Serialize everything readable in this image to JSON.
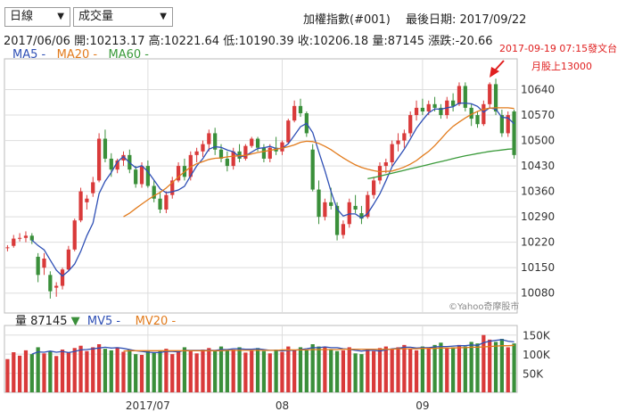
{
  "controls": {
    "period_select": "日線",
    "indicator_select": "成交量"
  },
  "header": {
    "index_name": "加權指數(#001)",
    "last_date_label": "最後日期: 2017/09/22"
  },
  "ohlc_bar": {
    "date": "2017/06/06",
    "open": "開:10213.17",
    "high": "高:10221.64",
    "low": "低:10190.39",
    "close": "收:10206.18",
    "volume": "量:87145",
    "change": "漲跌:-20.66"
  },
  "legend": {
    "ma5": "MA5 -",
    "ma20": "MA20 -",
    "ma60": "MA60 -",
    "vol": "量 87145",
    "mv5": "MV5 -",
    "mv20": "MV20 -"
  },
  "annotation": {
    "line1": "2017-09-19 07:15發文台",
    "line2": "月股上13000"
  },
  "watermark": "©Yahoo奇摩股市",
  "colors": {
    "up": "#d93a3a",
    "down": "#3a8f3a",
    "ma5": "#2e4fb5",
    "ma20": "#e27b1c",
    "ma60": "#3a9a3a",
    "grid": "#dddddd"
  },
  "chart_data": {
    "type": "candlestick",
    "price_axis": {
      "ticks": [
        "10640",
        "10570",
        "10500",
        "10430",
        "10360",
        "10290",
        "10220",
        "10150",
        "10080"
      ],
      "range": [
        10040,
        10710
      ]
    },
    "volume_axis": {
      "ticks": [
        "150K",
        "100K",
        "50K"
      ],
      "range": [
        0,
        175
      ]
    },
    "x_ticks": [
      {
        "label": "2017/07",
        "index": 23
      },
      {
        "label": "08",
        "index": 45
      },
      {
        "label": "09",
        "index": 68
      }
    ],
    "series": [
      {
        "name": "candles",
        "values": [
          [
            10205,
            10212,
            10195,
            10206
          ],
          [
            10210,
            10240,
            10205,
            10230
          ],
          [
            10230,
            10245,
            10222,
            10232
          ],
          [
            10232,
            10250,
            10220,
            10238
          ],
          [
            10238,
            10245,
            10215,
            10225
          ],
          [
            10180,
            10190,
            10110,
            10130
          ],
          [
            10150,
            10190,
            10130,
            10175
          ],
          [
            10130,
            10140,
            10065,
            10085
          ],
          [
            10095,
            10110,
            10070,
            10100
          ],
          [
            10100,
            10150,
            10090,
            10145
          ],
          [
            10145,
            10210,
            10140,
            10200
          ],
          [
            10200,
            10285,
            10195,
            10280
          ],
          [
            10280,
            10370,
            10275,
            10360
          ],
          [
            10330,
            10350,
            10310,
            10340
          ],
          [
            10355,
            10400,
            10345,
            10385
          ],
          [
            10390,
            10520,
            10385,
            10505
          ],
          [
            10505,
            10530,
            10440,
            10450
          ],
          [
            10450,
            10465,
            10400,
            10420
          ],
          [
            10420,
            10450,
            10410,
            10445
          ],
          [
            10445,
            10470,
            10430,
            10460
          ],
          [
            10460,
            10475,
            10410,
            10420
          ],
          [
            10420,
            10430,
            10370,
            10380
          ],
          [
            10380,
            10440,
            10370,
            10430
          ],
          [
            10430,
            10445,
            10370,
            10375
          ],
          [
            10375,
            10390,
            10330,
            10340
          ],
          [
            10340,
            10360,
            10300,
            10310
          ],
          [
            10310,
            10360,
            10300,
            10350
          ],
          [
            10350,
            10400,
            10340,
            10390
          ],
          [
            10390,
            10440,
            10385,
            10430
          ],
          [
            10430,
            10450,
            10390,
            10400
          ],
          [
            10400,
            10470,
            10390,
            10460
          ],
          [
            10460,
            10480,
            10440,
            10470
          ],
          [
            10470,
            10500,
            10455,
            10490
          ],
          [
            10490,
            10530,
            10470,
            10520
          ],
          [
            10520,
            10535,
            10460,
            10475
          ],
          [
            10475,
            10490,
            10440,
            10450
          ],
          [
            10450,
            10470,
            10415,
            10430
          ],
          [
            10430,
            10480,
            10420,
            10470
          ],
          [
            10470,
            10490,
            10440,
            10450
          ],
          [
            10450,
            10490,
            10445,
            10485
          ],
          [
            10485,
            10510,
            10480,
            10505
          ],
          [
            10505,
            10510,
            10470,
            10480
          ],
          [
            10480,
            10490,
            10440,
            10450
          ],
          [
            10450,
            10490,
            10440,
            10480
          ],
          [
            10480,
            10510,
            10460,
            10470
          ],
          [
            10470,
            10500,
            10460,
            10495
          ],
          [
            10495,
            10560,
            10490,
            10555
          ],
          [
            10555,
            10610,
            10550,
            10595
          ],
          [
            10595,
            10615,
            10565,
            10575
          ],
          [
            10575,
            10580,
            10510,
            10520
          ],
          [
            10475,
            10490,
            10360,
            10365
          ],
          [
            10365,
            10390,
            10270,
            10290
          ],
          [
            10290,
            10340,
            10280,
            10330
          ],
          [
            10330,
            10370,
            10310,
            10320
          ],
          [
            10320,
            10330,
            10225,
            10240
          ],
          [
            10240,
            10280,
            10230,
            10270
          ],
          [
            10270,
            10340,
            10260,
            10330
          ],
          [
            10320,
            10350,
            10300,
            10310
          ],
          [
            10300,
            10320,
            10270,
            10285
          ],
          [
            10290,
            10360,
            10285,
            10350
          ],
          [
            10350,
            10400,
            10340,
            10390
          ],
          [
            10390,
            10440,
            10380,
            10430
          ],
          [
            10430,
            10450,
            10410,
            10440
          ],
          [
            10440,
            10500,
            10430,
            10490
          ],
          [
            10490,
            10520,
            10470,
            10500
          ],
          [
            10500,
            10530,
            10480,
            10520
          ],
          [
            10520,
            10580,
            10510,
            10570
          ],
          [
            10570,
            10610,
            10555,
            10590
          ],
          [
            10590,
            10615,
            10570,
            10580
          ],
          [
            10580,
            10610,
            10570,
            10600
          ],
          [
            10600,
            10620,
            10580,
            10590
          ],
          [
            10590,
            10600,
            10560,
            10570
          ],
          [
            10570,
            10620,
            10560,
            10610
          ],
          [
            10610,
            10630,
            10580,
            10595
          ],
          [
            10600,
            10660,
            10595,
            10650
          ],
          [
            10650,
            10660,
            10580,
            10590
          ],
          [
            10590,
            10600,
            10540,
            10560
          ],
          [
            10570,
            10580,
            10535,
            10545
          ],
          [
            10545,
            10610,
            10540,
            10600
          ],
          [
            10600,
            10660,
            10590,
            10655
          ],
          [
            10655,
            10670,
            10570,
            10580
          ],
          [
            10570,
            10585,
            10510,
            10520
          ],
          [
            10520,
            10580,
            10510,
            10570
          ],
          [
            10580,
            10585,
            10450,
            10460
          ]
        ]
      },
      {
        "name": "MA5",
        "values": [
          null,
          null,
          null,
          null,
          10226,
          10211,
          10199,
          10171,
          10143,
          10127,
          10141,
          10160,
          10195,
          10238,
          10273,
          10354,
          10388,
          10412,
          10441,
          10456,
          10439,
          10425,
          10431,
          10414,
          10391,
          10367,
          10356,
          10359,
          10364,
          10374,
          10403,
          10430,
          10450,
          10476,
          10483,
          10481,
          10474,
          10469,
          10455,
          10458,
          10468,
          10478,
          10480,
          10484,
          10478,
          10478,
          10491,
          10514,
          10538,
          10547,
          10522,
          10469,
          10417,
          10360,
          10311,
          10292,
          10298,
          10298,
          10287,
          10299,
          10325,
          10353,
          10389,
          10428,
          10452,
          10476,
          10504,
          10534,
          10556,
          10576,
          10587,
          10586,
          10590,
          10593,
          10603,
          10603,
          10601,
          10594,
          10578,
          10590,
          10586,
          10564,
          10562,
          10546
        ]
      },
      {
        "name": "MA20",
        "values": [
          null,
          null,
          null,
          null,
          null,
          null,
          null,
          null,
          null,
          null,
          null,
          null,
          null,
          null,
          null,
          null,
          null,
          null,
          null,
          10290,
          10300,
          10313,
          10325,
          10337,
          10348,
          10357,
          10369,
          10384,
          10400,
          10414,
          10427,
          10436,
          10442,
          10448,
          10451,
          10452,
          10455,
          10457,
          10458,
          10459,
          10463,
          10467,
          10470,
          10473,
          10476,
          10479,
          10483,
          10488,
          10495,
          10498,
          10497,
          10492,
          10484,
          10475,
          10463,
          10452,
          10442,
          10433,
          10426,
          10421,
          10417,
          10414,
          10415,
          10416,
          10421,
          10427,
          10435,
          10445,
          10458,
          10470,
          10486,
          10504,
          10523,
          10539,
          10551,
          10562,
          10572,
          10580,
          10586,
          10589,
          10590,
          10590,
          10590,
          10588
        ]
      },
      {
        "name": "MA60",
        "values": [
          null,
          null,
          null,
          null,
          null,
          null,
          null,
          null,
          null,
          null,
          null,
          null,
          null,
          null,
          null,
          null,
          null,
          null,
          null,
          null,
          null,
          null,
          null,
          null,
          null,
          null,
          null,
          null,
          null,
          null,
          null,
          null,
          null,
          null,
          null,
          null,
          null,
          null,
          null,
          null,
          null,
          null,
          null,
          null,
          null,
          null,
          null,
          null,
          null,
          null,
          null,
          null,
          null,
          null,
          null,
          null,
          null,
          null,
          null,
          10395,
          10398,
          10402,
          10406,
          10410,
          10414,
          10418,
          10422,
          10426,
          10430,
          10434,
          10438,
          10442,
          10446,
          10450,
          10454,
          10458,
          10461,
          10464,
          10467,
          10470,
          10472,
          10474,
          10476,
          10477
        ]
      },
      {
        "name": "volume",
        "values": [
          87,
          105,
          96,
          110,
          100,
          118,
          102,
          108,
          95,
          112,
          104,
          116,
          122,
          108,
          118,
          126,
          114,
          110,
          118,
          106,
          112,
          100,
          98,
          108,
          104,
          110,
          114,
          100,
          106,
          118,
          110,
          102,
          112,
          116,
          108,
          120,
          110,
          112,
          118,
          104,
          110,
          116,
          108,
          102,
          112,
          106,
          120,
          112,
          118,
          110,
          126,
          120,
          118,
          112,
          108,
          110,
          118,
          102,
          100,
          112,
          108,
          116,
          120,
          112,
          118,
          124,
          114,
          110,
          120,
          118,
          124,
          130,
          116,
          118,
          124,
          120,
          132,
          128,
          150,
          138,
          132,
          140,
          118,
          128
        ]
      },
      {
        "name": "MV5",
        "values": [
          null,
          null,
          null,
          null,
          100,
          106,
          105,
          108,
          105,
          107,
          104,
          107,
          111,
          112,
          114,
          116,
          118,
          116,
          117,
          115,
          112,
          109,
          107,
          105,
          104,
          104,
          107,
          107,
          106,
          110,
          110,
          110,
          110,
          110,
          110,
          112,
          112,
          114,
          114,
          113,
          113,
          114,
          112,
          110,
          110,
          109,
          110,
          110,
          112,
          114,
          117,
          117,
          119,
          117,
          117,
          114,
          113,
          110,
          108,
          110,
          110,
          108,
          111,
          114,
          115,
          118,
          118,
          116,
          117,
          117,
          119,
          120,
          120,
          121,
          122,
          122,
          124,
          123,
          130,
          134,
          136,
          138,
          134,
          132
        ]
      },
      {
        "name": "MV20",
        "values": [
          null,
          null,
          null,
          null,
          null,
          null,
          null,
          null,
          null,
          null,
          null,
          null,
          null,
          null,
          null,
          null,
          null,
          null,
          null,
          108,
          109,
          109,
          109,
          109,
          109,
          109,
          109,
          109,
          109,
          109,
          109,
          109,
          109,
          109,
          109,
          109,
          110,
          110,
          110,
          110,
          110,
          110,
          110,
          110,
          110,
          111,
          111,
          111,
          111,
          111,
          112,
          112,
          112,
          112,
          112,
          113,
          113,
          113,
          113,
          113,
          113,
          113,
          113,
          113,
          114,
          114,
          114,
          114,
          115,
          115,
          115,
          116,
          116,
          116,
          117,
          117,
          118,
          118,
          119,
          120,
          121,
          122,
          122,
          123
        ]
      }
    ]
  }
}
